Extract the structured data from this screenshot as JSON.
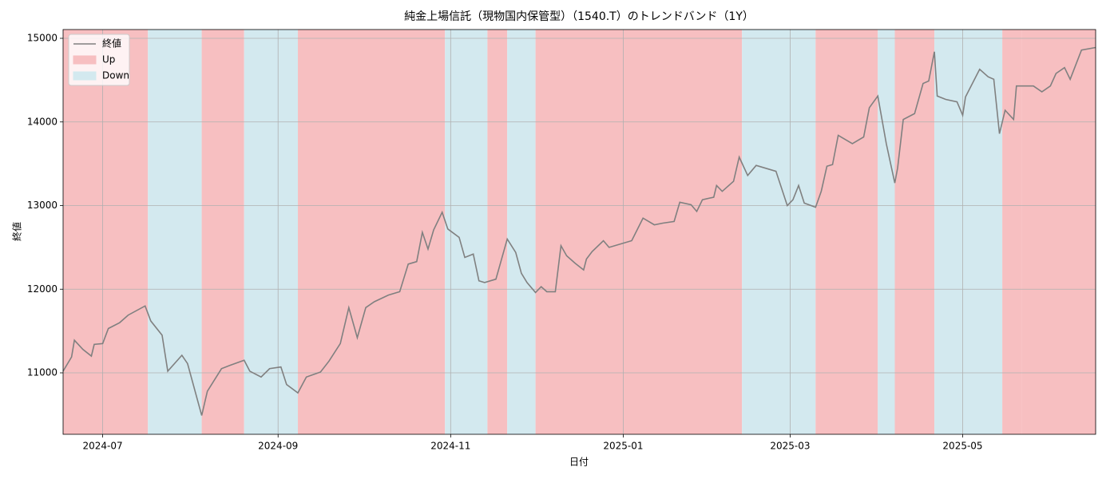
{
  "chart_data": {
    "type": "line",
    "title": "純金上場信託（現物国内保管型）（1540.T）のトレンドバンド（1Y）",
    "xlabel": "日付",
    "ylabel": "終値",
    "xlim": [
      "2024-06-17",
      "2025-06-17"
    ],
    "ylim": [
      10265,
      15105
    ],
    "xticks": [
      {
        "value": "2024-07-01",
        "label": "2024-07"
      },
      {
        "value": "2024-09-01",
        "label": "2024-09"
      },
      {
        "value": "2024-11-01",
        "label": "2024-11"
      },
      {
        "value": "2025-01-01",
        "label": "2025-01"
      },
      {
        "value": "2025-03-01",
        "label": "2025-03"
      },
      {
        "value": "2025-05-01",
        "label": "2025-05"
      }
    ],
    "yticks": [
      11000,
      12000,
      13000,
      14000,
      15000
    ],
    "grid": true,
    "legend": "upper left",
    "band_legend": [
      {
        "name": "Up",
        "color": "#f7bfc1"
      },
      {
        "name": "Down",
        "color": "#d3e9ef"
      }
    ],
    "bands": [
      {
        "start": "2024-06-17",
        "end": "2024-07-17",
        "trend": "Up"
      },
      {
        "start": "2024-07-17",
        "end": "2024-08-05",
        "trend": "Down"
      },
      {
        "start": "2024-08-05",
        "end": "2024-08-20",
        "trend": "Up"
      },
      {
        "start": "2024-08-20",
        "end": "2024-09-08",
        "trend": "Down"
      },
      {
        "start": "2024-09-08",
        "end": "2024-10-30",
        "trend": "Up"
      },
      {
        "start": "2024-10-30",
        "end": "2024-11-14",
        "trend": "Down"
      },
      {
        "start": "2024-11-14",
        "end": "2024-11-21",
        "trend": "Up"
      },
      {
        "start": "2024-11-21",
        "end": "2024-12-01",
        "trend": "Down"
      },
      {
        "start": "2024-12-01",
        "end": "2025-02-12",
        "trend": "Up"
      },
      {
        "start": "2025-02-12",
        "end": "2025-03-10",
        "trend": "Down"
      },
      {
        "start": "2025-03-10",
        "end": "2025-04-01",
        "trend": "Up"
      },
      {
        "start": "2025-04-01",
        "end": "2025-04-07",
        "trend": "Down"
      },
      {
        "start": "2025-04-07",
        "end": "2025-04-21",
        "trend": "Up"
      },
      {
        "start": "2025-04-21",
        "end": "2025-05-15",
        "trend": "Down"
      },
      {
        "start": "2025-05-15",
        "end": "2025-05-22",
        "trend": "Up"
      },
      {
        "start": "2025-05-22",
        "end": "2025-06-17",
        "trend": "Up"
      }
    ],
    "x": [
      "2024-06-17",
      "2024-06-20",
      "2024-06-21",
      "2024-06-24",
      "2024-06-27",
      "2024-06-28",
      "2024-07-01",
      "2024-07-03",
      "2024-07-07",
      "2024-07-10",
      "2024-07-16",
      "2024-07-18",
      "2024-07-22",
      "2024-07-24",
      "2024-07-29",
      "2024-07-31",
      "2024-08-05",
      "2024-08-07",
      "2024-08-12",
      "2024-08-15",
      "2024-08-20",
      "2024-08-22",
      "2024-08-26",
      "2024-08-29",
      "2024-09-02",
      "2024-09-04",
      "2024-09-08",
      "2024-09-11",
      "2024-09-16",
      "2024-09-19",
      "2024-09-23",
      "2024-09-26",
      "2024-09-29",
      "2024-10-02",
      "2024-10-05",
      "2024-10-10",
      "2024-10-14",
      "2024-10-17",
      "2024-10-20",
      "2024-10-22",
      "2024-10-24",
      "2024-10-26",
      "2024-10-29",
      "2024-10-31",
      "2024-11-04",
      "2024-11-06",
      "2024-11-09",
      "2024-11-11",
      "2024-11-13",
      "2024-11-17",
      "2024-11-21",
      "2024-11-24",
      "2024-11-26",
      "2024-11-28",
      "2024-12-01",
      "2024-12-03",
      "2024-12-05",
      "2024-12-08",
      "2024-12-10",
      "2024-12-12",
      "2024-12-15",
      "2024-12-18",
      "2024-12-19",
      "2024-12-21",
      "2024-12-25",
      "2024-12-27",
      "2025-01-04",
      "2025-01-08",
      "2025-01-12",
      "2025-01-15",
      "2025-01-19",
      "2025-01-21",
      "2025-01-25",
      "2025-01-27",
      "2025-01-29",
      "2025-02-02",
      "2025-02-03",
      "2025-02-05",
      "2025-02-09",
      "2025-02-11",
      "2025-02-14",
      "2025-02-17",
      "2025-02-24",
      "2025-02-28",
      "2025-03-02",
      "2025-03-04",
      "2025-03-06",
      "2025-03-10",
      "2025-03-12",
      "2025-03-14",
      "2025-03-16",
      "2025-03-18",
      "2025-03-23",
      "2025-03-27",
      "2025-03-29",
      "2025-04-01",
      "2025-04-04",
      "2025-04-07",
      "2025-04-08",
      "2025-04-10",
      "2025-04-14",
      "2025-04-17",
      "2025-04-19",
      "2025-04-21",
      "2025-04-22",
      "2025-04-25",
      "2025-04-29",
      "2025-05-01",
      "2025-05-02",
      "2025-05-07",
      "2025-05-10",
      "2025-05-12",
      "2025-05-14",
      "2025-05-16",
      "2025-05-19",
      "2025-05-20",
      "2025-05-26",
      "2025-05-29",
      "2025-06-01",
      "2025-06-03",
      "2025-06-06",
      "2025-06-08",
      "2025-06-12",
      "2025-06-17"
    ],
    "series": [
      {
        "name": "終値",
        "color": "#808080",
        "values": [
          11020,
          11190,
          11390,
          11280,
          11200,
          11340,
          11350,
          11530,
          11600,
          11690,
          11800,
          11620,
          11450,
          11020,
          11210,
          11110,
          10490,
          10780,
          11050,
          11090,
          11150,
          11020,
          10950,
          11050,
          11070,
          10860,
          10760,
          10950,
          11010,
          11140,
          11350,
          11780,
          11420,
          11780,
          11850,
          11930,
          11970,
          12300,
          12330,
          12680,
          12480,
          12710,
          12920,
          12720,
          12620,
          12380,
          12420,
          12100,
          12080,
          12120,
          12600,
          12440,
          12190,
          12080,
          11960,
          12030,
          11970,
          11970,
          12520,
          12400,
          12310,
          12230,
          12360,
          12450,
          12580,
          12500,
          12580,
          12850,
          12770,
          12790,
          12810,
          13040,
          13010,
          12930,
          13070,
          13100,
          13240,
          13170,
          13290,
          13580,
          13360,
          13480,
          13410,
          13000,
          13070,
          13240,
          13030,
          12980,
          13170,
          13470,
          13490,
          13840,
          13740,
          13820,
          14170,
          14310,
          13740,
          13270,
          13450,
          14030,
          14100,
          14460,
          14490,
          14840,
          14310,
          14270,
          14240,
          14080,
          14300,
          14630,
          14540,
          14510,
          13860,
          14140,
          14030,
          14430,
          14430,
          14360,
          14430,
          14580,
          14650,
          14510,
          14860,
          14890
        ]
      }
    ]
  }
}
